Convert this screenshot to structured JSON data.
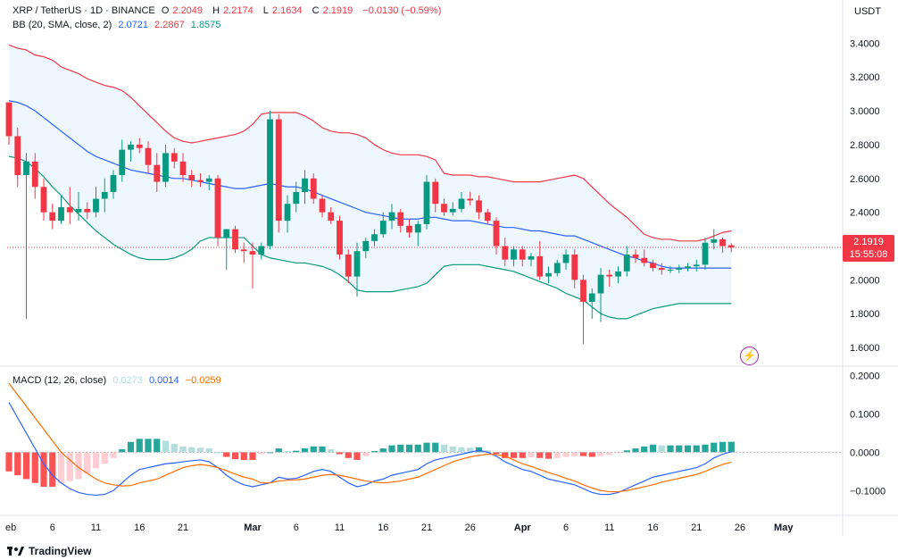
{
  "header": {
    "symbol": "XRP / TetherUS · 1D · BINANCE",
    "open_label": "O",
    "open": "2.2049",
    "high_label": "H",
    "high": "2.2174",
    "low_label": "L",
    "low": "2.1634",
    "close_label": "C",
    "close": "2.1919",
    "change": "−0.0130 (−0.59%)"
  },
  "bb_legend": {
    "label": "BB (20, SMA, close, 2)",
    "basis": "2.0721",
    "upper": "2.2867",
    "lower": "1.8575"
  },
  "macd_legend": {
    "label": "MACD (12, 26, close)",
    "hist": "0.0273",
    "macd": "0.0014",
    "signal": "−0.0259"
  },
  "axis": {
    "unit": "USDT"
  },
  "price_tag": {
    "price": "2.1919",
    "countdown": "15:55:08"
  },
  "brand": {
    "name": "TradingView"
  },
  "colors": {
    "up": "#089981",
    "down": "#f23645",
    "bb_upper": "#f23645",
    "bb_basis": "#2962ff",
    "bb_lower": "#089981",
    "bb_fill": "#e3f2fd",
    "macd": "#2962ff",
    "signal": "#ff6d00"
  },
  "chart_data": [
    {
      "type": "candlestick",
      "y_ticks": [
        "3.4000",
        "3.2000",
        "3.0000",
        "2.8000",
        "2.6000",
        "2.4000",
        "2.2000",
        "2.0000",
        "1.8000",
        "1.6000"
      ],
      "ylim": [
        1.5,
        3.55
      ],
      "x_tick_labels": [
        {
          "label": "eb",
          "index": 0
        },
        {
          "label": "6",
          "index": 5
        },
        {
          "label": "11",
          "index": 10
        },
        {
          "label": "16",
          "index": 15
        },
        {
          "label": "21",
          "index": 20
        },
        {
          "label": "Mar",
          "index": 28
        },
        {
          "label": "6",
          "index": 33
        },
        {
          "label": "11",
          "index": 38
        },
        {
          "label": "16",
          "index": 43
        },
        {
          "label": "21",
          "index": 48
        },
        {
          "label": "26",
          "index": 53
        },
        {
          "label": "Apr",
          "index": 59
        },
        {
          "label": "6",
          "index": 64
        },
        {
          "label": "11",
          "index": 69
        },
        {
          "label": "16",
          "index": 74
        },
        {
          "label": "21",
          "index": 79
        },
        {
          "label": "26",
          "index": 84
        },
        {
          "label": "May",
          "index": 89
        }
      ],
      "candles": [
        [
          3.05,
          3.05,
          2.8,
          2.85
        ],
        [
          2.85,
          2.9,
          2.55,
          2.62
        ],
        [
          2.62,
          2.75,
          1.77,
          2.7
        ],
        [
          2.7,
          2.75,
          2.48,
          2.55
        ],
        [
          2.55,
          2.6,
          2.35,
          2.4
        ],
        [
          2.4,
          2.45,
          2.3,
          2.35
        ],
        [
          2.35,
          2.5,
          2.33,
          2.43
        ],
        [
          2.43,
          2.55,
          2.33,
          2.4
        ],
        [
          2.4,
          2.52,
          2.35,
          2.42
        ],
        [
          2.42,
          2.46,
          2.36,
          2.4
        ],
        [
          2.4,
          2.55,
          2.37,
          2.48
        ],
        [
          2.48,
          2.6,
          2.4,
          2.52
        ],
        [
          2.52,
          2.65,
          2.48,
          2.62
        ],
        [
          2.62,
          2.83,
          2.58,
          2.77
        ],
        [
          2.77,
          2.82,
          2.7,
          2.8
        ],
        [
          2.8,
          2.84,
          2.75,
          2.78
        ],
        [
          2.78,
          2.82,
          2.63,
          2.68
        ],
        [
          2.68,
          2.75,
          2.52,
          2.58
        ],
        [
          2.58,
          2.8,
          2.55,
          2.75
        ],
        [
          2.75,
          2.78,
          2.66,
          2.7
        ],
        [
          2.7,
          2.75,
          2.58,
          2.62
        ],
        [
          2.62,
          2.65,
          2.55,
          2.59
        ],
        [
          2.59,
          2.63,
          2.55,
          2.58
        ],
        [
          2.58,
          2.62,
          2.53,
          2.6
        ],
        [
          2.6,
          2.62,
          2.2,
          2.25
        ],
        [
          2.25,
          2.3,
          2.06,
          2.3
        ],
        [
          2.3,
          2.32,
          2.16,
          2.18
        ],
        [
          2.18,
          2.22,
          2.1,
          2.17
        ],
        [
          2.17,
          2.22,
          1.95,
          2.15
        ],
        [
          2.15,
          2.22,
          2.12,
          2.2
        ],
        [
          2.2,
          3.0,
          2.18,
          2.95
        ],
        [
          2.95,
          2.98,
          2.28,
          2.35
        ],
        [
          2.35,
          2.5,
          2.28,
          2.45
        ],
        [
          2.45,
          2.58,
          2.4,
          2.52
        ],
        [
          2.52,
          2.65,
          2.45,
          2.6
        ],
        [
          2.6,
          2.63,
          2.45,
          2.48
        ],
        [
          2.48,
          2.5,
          2.37,
          2.4
        ],
        [
          2.4,
          2.43,
          2.33,
          2.35
        ],
        [
          2.35,
          2.38,
          2.12,
          2.15
        ],
        [
          2.15,
          2.18,
          1.98,
          2.02
        ],
        [
          2.02,
          2.22,
          1.9,
          2.17
        ],
        [
          2.17,
          2.25,
          2.13,
          2.23
        ],
        [
          2.23,
          2.3,
          2.2,
          2.27
        ],
        [
          2.27,
          2.4,
          2.25,
          2.35
        ],
        [
          2.35,
          2.45,
          2.3,
          2.4
        ],
        [
          2.4,
          2.42,
          2.28,
          2.32
        ],
        [
          2.32,
          2.36,
          2.25,
          2.28
        ],
        [
          2.28,
          2.35,
          2.2,
          2.33
        ],
        [
          2.33,
          2.62,
          2.3,
          2.58
        ],
        [
          2.58,
          2.6,
          2.4,
          2.45
        ],
        [
          2.45,
          2.48,
          2.38,
          2.4
        ],
        [
          2.4,
          2.46,
          2.38,
          2.42
        ],
        [
          2.42,
          2.52,
          2.4,
          2.48
        ],
        [
          2.48,
          2.52,
          2.44,
          2.47
        ],
        [
          2.47,
          2.5,
          2.36,
          2.4
        ],
        [
          2.4,
          2.42,
          2.33,
          2.35
        ],
        [
          2.35,
          2.37,
          2.15,
          2.2
        ],
        [
          2.2,
          2.25,
          2.08,
          2.12
        ],
        [
          2.12,
          2.2,
          2.08,
          2.18
        ],
        [
          2.18,
          2.2,
          2.08,
          2.12
        ],
        [
          2.12,
          2.16,
          2.08,
          2.14
        ],
        [
          2.14,
          2.23,
          2.0,
          2.02
        ],
        [
          2.02,
          2.08,
          1.98,
          2.04
        ],
        [
          2.04,
          2.12,
          2.02,
          2.1
        ],
        [
          2.1,
          2.18,
          2.06,
          2.15
        ],
        [
          2.15,
          2.18,
          1.95,
          2.0
        ],
        [
          2.0,
          2.03,
          1.62,
          1.87
        ],
        [
          1.87,
          1.95,
          1.77,
          1.92
        ],
        [
          1.92,
          2.07,
          1.75,
          2.03
        ],
        [
          2.03,
          2.06,
          1.96,
          2.02
        ],
        [
          2.02,
          2.08,
          1.98,
          2.05
        ],
        [
          2.05,
          2.2,
          2.02,
          2.15
        ],
        [
          2.15,
          2.18,
          2.1,
          2.13
        ],
        [
          2.13,
          2.18,
          2.08,
          2.1
        ],
        [
          2.1,
          2.12,
          2.05,
          2.07
        ],
        [
          2.07,
          2.1,
          2.03,
          2.06
        ],
        [
          2.06,
          2.08,
          2.04,
          2.06
        ],
        [
          2.06,
          2.09,
          2.04,
          2.07
        ],
        [
          2.07,
          2.1,
          2.05,
          2.08
        ],
        [
          2.08,
          2.12,
          2.05,
          2.09
        ],
        [
          2.09,
          2.25,
          2.06,
          2.22
        ],
        [
          2.22,
          2.3,
          2.18,
          2.24
        ],
        [
          2.24,
          2.25,
          2.16,
          2.2
        ],
        [
          2.2049,
          2.2174,
          2.1634,
          2.1919
        ]
      ],
      "bb_upper": [
        3.39,
        3.37,
        3.36,
        3.33,
        3.32,
        3.3,
        3.26,
        3.24,
        3.22,
        3.19,
        3.17,
        3.15,
        3.14,
        3.12,
        3.08,
        3.03,
        2.98,
        2.93,
        2.88,
        2.84,
        2.82,
        2.81,
        2.82,
        2.83,
        2.84,
        2.85,
        2.86,
        2.88,
        2.92,
        2.98,
        2.99,
        2.99,
        2.99,
        2.99,
        2.97,
        2.94,
        2.9,
        2.88,
        2.87,
        2.87,
        2.86,
        2.84,
        2.8,
        2.77,
        2.75,
        2.74,
        2.74,
        2.74,
        2.73,
        2.71,
        2.63,
        2.62,
        2.62,
        2.62,
        2.61,
        2.61,
        2.6,
        2.59,
        2.58,
        2.58,
        2.58,
        2.58,
        2.59,
        2.6,
        2.61,
        2.62,
        2.6,
        2.55,
        2.5,
        2.45,
        2.41,
        2.37,
        2.32,
        2.27,
        2.25,
        2.24,
        2.24,
        2.23,
        2.23,
        2.23,
        2.24,
        2.26,
        2.28,
        2.29
      ],
      "bb_basis": [
        3.06,
        3.05,
        3.03,
        3.0,
        2.96,
        2.92,
        2.88,
        2.84,
        2.8,
        2.76,
        2.73,
        2.71,
        2.69,
        2.67,
        2.65,
        2.64,
        2.63,
        2.62,
        2.61,
        2.6,
        2.6,
        2.59,
        2.58,
        2.57,
        2.56,
        2.55,
        2.54,
        2.54,
        2.55,
        2.56,
        2.57,
        2.56,
        2.55,
        2.55,
        2.54,
        2.52,
        2.5,
        2.48,
        2.46,
        2.44,
        2.42,
        2.4,
        2.39,
        2.38,
        2.37,
        2.36,
        2.36,
        2.36,
        2.37,
        2.37,
        2.36,
        2.35,
        2.35,
        2.35,
        2.34,
        2.33,
        2.32,
        2.31,
        2.31,
        2.3,
        2.29,
        2.29,
        2.28,
        2.27,
        2.26,
        2.26,
        2.24,
        2.22,
        2.2,
        2.18,
        2.16,
        2.14,
        2.13,
        2.11,
        2.1,
        2.08,
        2.07,
        2.07,
        2.07,
        2.07,
        2.07,
        2.07,
        2.07,
        2.07
      ],
      "bb_lower": [
        2.73,
        2.72,
        2.7,
        2.66,
        2.61,
        2.55,
        2.5,
        2.44,
        2.39,
        2.34,
        2.29,
        2.25,
        2.21,
        2.18,
        2.15,
        2.13,
        2.12,
        2.12,
        2.12,
        2.13,
        2.15,
        2.18,
        2.23,
        2.25,
        2.25,
        2.25,
        2.25,
        2.25,
        2.2,
        2.15,
        2.13,
        2.12,
        2.11,
        2.1,
        2.1,
        2.09,
        2.08,
        2.06,
        2.03,
        1.99,
        1.94,
        1.93,
        1.93,
        1.93,
        1.93,
        1.94,
        1.95,
        1.96,
        1.98,
        2.03,
        2.08,
        2.09,
        2.09,
        2.09,
        2.09,
        2.08,
        2.07,
        2.06,
        2.05,
        2.03,
        2.01,
        1.99,
        1.97,
        1.95,
        1.92,
        1.9,
        1.88,
        1.84,
        1.8,
        1.78,
        1.77,
        1.77,
        1.79,
        1.81,
        1.83,
        1.84,
        1.85,
        1.86,
        1.86,
        1.86,
        1.86,
        1.86,
        1.86,
        1.86
      ]
    },
    {
      "type": "macd",
      "y_ticks": [
        "0.2000",
        "0.1000",
        "0.0000",
        "−0.1000"
      ],
      "ylim": [
        -0.16,
        0.22
      ],
      "macd": [
        0.13,
        0.09,
        0.05,
        0.01,
        -0.03,
        -0.06,
        -0.08,
        -0.095,
        -0.105,
        -0.11,
        -0.112,
        -0.11,
        -0.1,
        -0.08,
        -0.06,
        -0.045,
        -0.04,
        -0.035,
        -0.03,
        -0.028,
        -0.025,
        -0.022,
        -0.02,
        -0.025,
        -0.04,
        -0.06,
        -0.075,
        -0.085,
        -0.09,
        -0.085,
        -0.08,
        -0.065,
        -0.07,
        -0.068,
        -0.06,
        -0.05,
        -0.045,
        -0.05,
        -0.065,
        -0.08,
        -0.09,
        -0.085,
        -0.075,
        -0.07,
        -0.06,
        -0.055,
        -0.05,
        -0.045,
        -0.03,
        -0.02,
        -0.015,
        -0.01,
        -0.005,
        0.0,
        0.005,
        0.0,
        -0.01,
        -0.025,
        -0.035,
        -0.045,
        -0.05,
        -0.06,
        -0.07,
        -0.075,
        -0.08,
        -0.085,
        -0.095,
        -0.105,
        -0.11,
        -0.11,
        -0.105,
        -0.095,
        -0.085,
        -0.075,
        -0.065,
        -0.06,
        -0.055,
        -0.05,
        -0.045,
        -0.04,
        -0.03,
        -0.015,
        -0.005,
        0.0014
      ],
      "signal": [
        0.18,
        0.15,
        0.12,
        0.09,
        0.06,
        0.03,
        0.0,
        -0.02,
        -0.04,
        -0.055,
        -0.07,
        -0.08,
        -0.085,
        -0.088,
        -0.087,
        -0.08,
        -0.075,
        -0.07,
        -0.06,
        -0.05,
        -0.04,
        -0.035,
        -0.032,
        -0.035,
        -0.04,
        -0.048,
        -0.057,
        -0.065,
        -0.07,
        -0.08,
        -0.08,
        -0.075,
        -0.073,
        -0.072,
        -0.07,
        -0.065,
        -0.06,
        -0.058,
        -0.06,
        -0.065,
        -0.07,
        -0.075,
        -0.078,
        -0.08,
        -0.078,
        -0.075,
        -0.07,
        -0.065,
        -0.055,
        -0.045,
        -0.035,
        -0.025,
        -0.018,
        -0.012,
        -0.008,
        -0.005,
        -0.006,
        -0.01,
        -0.02,
        -0.03,
        -0.037,
        -0.045,
        -0.053,
        -0.06,
        -0.068,
        -0.075,
        -0.085,
        -0.093,
        -0.1,
        -0.103,
        -0.103,
        -0.1,
        -0.095,
        -0.09,
        -0.085,
        -0.078,
        -0.073,
        -0.068,
        -0.063,
        -0.058,
        -0.05,
        -0.04,
        -0.032,
        -0.0259
      ],
      "histogram": [
        -0.05,
        -0.06,
        -0.07,
        -0.08,
        -0.09,
        -0.09,
        -0.08,
        -0.075,
        -0.07,
        -0.055,
        -0.042,
        -0.03,
        -0.015,
        0.008,
        0.027,
        0.035,
        0.035,
        0.035,
        0.03,
        0.022,
        0.015,
        0.013,
        0.012,
        0.01,
        0.0,
        -0.012,
        -0.018,
        -0.02,
        -0.02,
        -0.005,
        0.0,
        0.01,
        0.003,
        0.004,
        0.01,
        0.015,
        0.015,
        0.008,
        -0.005,
        -0.015,
        -0.02,
        -0.01,
        0.003,
        0.01,
        0.018,
        0.02,
        0.02,
        0.02,
        0.025,
        0.025,
        0.02,
        0.015,
        0.013,
        0.012,
        0.013,
        0.005,
        -0.004,
        -0.015,
        -0.015,
        -0.015,
        -0.013,
        -0.015,
        -0.017,
        -0.015,
        -0.012,
        -0.01,
        -0.01,
        -0.012,
        -0.01,
        -0.007,
        -0.002,
        0.005,
        0.01,
        0.015,
        0.02,
        0.018,
        0.018,
        0.018,
        0.018,
        0.018,
        0.02,
        0.025,
        0.027,
        0.0273
      ]
    }
  ]
}
